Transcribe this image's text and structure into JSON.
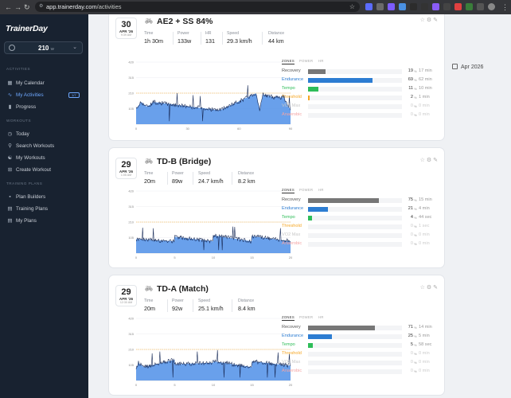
{
  "browser": {
    "url_host": "app.trainerday.com",
    "url_path": "/activities"
  },
  "sidebar": {
    "logo": "TrainerDay",
    "ftp": {
      "value": "210",
      "unit": "W"
    },
    "sections": {
      "activities": "ACTIVITIES",
      "workouts": "WORKOUTS",
      "plans": "TRAINING PLANS"
    },
    "activities_items": [
      {
        "label": "My Calendar",
        "icon": "calendar-icon"
      },
      {
        "label": "My Activities",
        "icon": "activity-icon",
        "badge": "1/7"
      },
      {
        "label": "Progress",
        "icon": "bar-chart-icon"
      }
    ],
    "workouts_items": [
      {
        "label": "Today",
        "icon": "clock-icon"
      },
      {
        "label": "Search Workouts",
        "icon": "search-icon"
      },
      {
        "label": "My Workouts",
        "icon": "workout-icon"
      },
      {
        "label": "Create Workout",
        "icon": "plus-icon"
      }
    ],
    "plans_items": [
      {
        "label": "Plan Builders",
        "icon": "builder-icon"
      },
      {
        "label": "Training Plans",
        "icon": "plans-icon"
      },
      {
        "label": "My Plans",
        "icon": "my-plans-icon"
      }
    ]
  },
  "month_label": "Apr 2026",
  "zone_tabs": [
    "ZONES",
    "POWER",
    "HR"
  ],
  "zone_colors": [
    "#777777",
    "#2d7dd2",
    "#2ebd59",
    "#f5a623",
    "#c8c8c8",
    "#f4a3a3"
  ],
  "activities": [
    {
      "day": "30",
      "month": "APR '26",
      "time": "9:39 AM",
      "title": "AE2 + SS 84%",
      "stats": [
        {
          "label": "Time",
          "value": "1h 30m"
        },
        {
          "label": "Power",
          "value": "133w"
        },
        {
          "label": "HR",
          "value": "131"
        },
        {
          "label": "Speed",
          "value": "29.3 km/h"
        },
        {
          "label": "Distance",
          "value": "44 km"
        }
      ],
      "chart_data": {
        "type": "area",
        "yticks": [
          105,
          210,
          315,
          420
        ],
        "xticks": [
          0,
          30,
          60,
          90
        ],
        "x_max": 90,
        "y_max": 420,
        "ftp_line": 210,
        "note": "Blue blocks = workout target; dark line = actual power"
      },
      "zones": [
        {
          "name": "Recovery",
          "percent": 19,
          "time": "17 min"
        },
        {
          "name": "Endurance",
          "percent": 69,
          "time": "62 min"
        },
        {
          "name": "Tempo",
          "percent": 11,
          "time": "10 min"
        },
        {
          "name": "Threshold",
          "percent": 2,
          "time": "1 min"
        },
        {
          "name": "VO2 Max",
          "percent": 0,
          "time": "0 min"
        },
        {
          "name": "Anaerobic",
          "percent": 0,
          "time": "0 min"
        }
      ]
    },
    {
      "day": "29",
      "month": "APR '26",
      "time": "1:05 AM",
      "title": "TD-B (Bridge)",
      "stats": [
        {
          "label": "Time",
          "value": "20m"
        },
        {
          "label": "Power",
          "value": "89w"
        },
        {
          "label": "Speed",
          "value": "24.7 km/h"
        },
        {
          "label": "Distance",
          "value": "8.2 km"
        }
      ],
      "chart_data": {
        "type": "area",
        "yticks": [
          105,
          210,
          315,
          420
        ],
        "xticks": [
          0,
          5,
          10,
          15,
          20
        ],
        "x_max": 20,
        "y_max": 420,
        "ftp_line": 210
      },
      "zones": [
        {
          "name": "Recovery",
          "percent": 75,
          "time": "15 min"
        },
        {
          "name": "Endurance",
          "percent": 21,
          "time": "4 min"
        },
        {
          "name": "Tempo",
          "percent": 4,
          "time": "44 sec"
        },
        {
          "name": "Threshold",
          "percent": 0,
          "time": "1 sec"
        },
        {
          "name": "VO2 Max",
          "percent": 0,
          "time": "0 min"
        },
        {
          "name": "Anaerobic",
          "percent": 0,
          "time": "0 min"
        }
      ]
    },
    {
      "day": "29",
      "month": "APR '26",
      "time": "12:30 AM",
      "title": "TD-A (Match)",
      "stats": [
        {
          "label": "Time",
          "value": "20m"
        },
        {
          "label": "Power",
          "value": "92w"
        },
        {
          "label": "Speed",
          "value": "25.1 km/h"
        },
        {
          "label": "Distance",
          "value": "8.4 km"
        }
      ],
      "chart_data": {
        "type": "area",
        "yticks": [
          105,
          210,
          315,
          420
        ],
        "xticks": [
          0,
          5,
          10,
          15,
          20
        ],
        "x_max": 20,
        "y_max": 420,
        "ftp_line": 210
      },
      "zones": [
        {
          "name": "Recovery",
          "percent": 71,
          "time": "14 min"
        },
        {
          "name": "Endurance",
          "percent": 25,
          "time": "5 min"
        },
        {
          "name": "Tempo",
          "percent": 5,
          "time": "58 sec"
        },
        {
          "name": "Threshold",
          "percent": 0,
          "time": "0 min"
        },
        {
          "name": "VO2 Max",
          "percent": 0,
          "time": "0 min"
        },
        {
          "name": "Anaerobic",
          "percent": 0,
          "time": "0 min"
        }
      ]
    }
  ]
}
